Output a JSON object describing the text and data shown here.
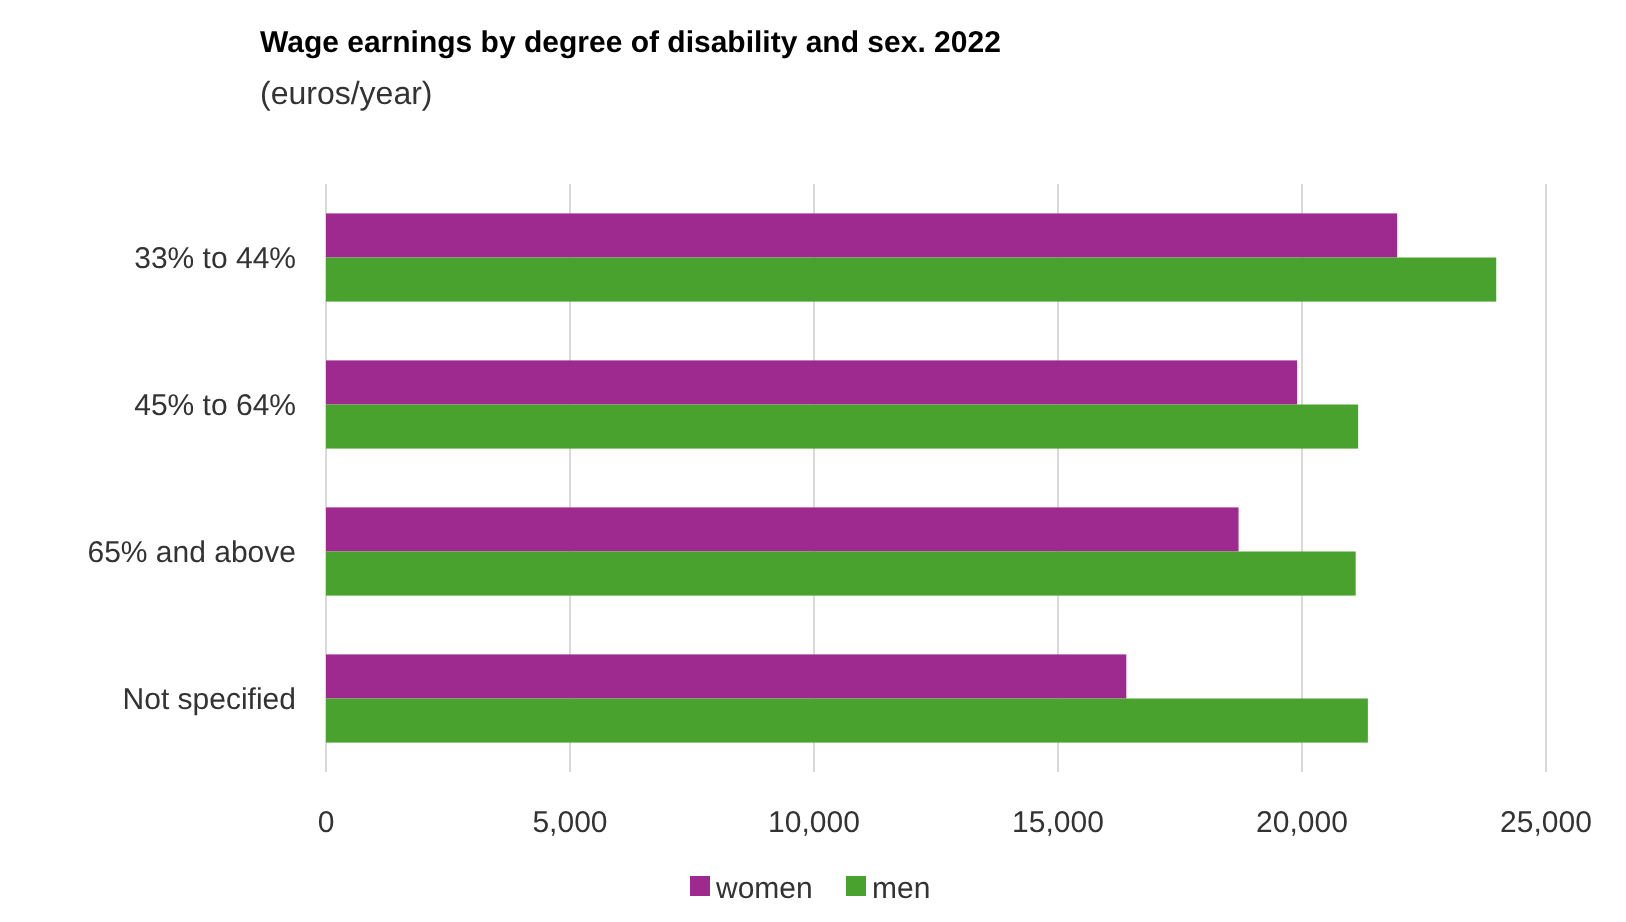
{
  "chart_data": {
    "type": "bar",
    "orientation": "horizontal",
    "title": "Wage earnings by degree of disability and sex. 2022",
    "subtitle": "(euros/year)",
    "categories": [
      "33% to 44%",
      "45% to 64%",
      "65% and above",
      "Not specified"
    ],
    "series": [
      {
        "name": "women",
        "color": "#9e2a8f",
        "values": [
          21950,
          19900,
          18700,
          16400
        ]
      },
      {
        "name": "men",
        "color": "#4aa22e",
        "values": [
          23980,
          21150,
          21100,
          21350
        ]
      }
    ],
    "xlim": [
      0,
      25000
    ],
    "xticks": [
      {
        "value": 0,
        "label": "0"
      },
      {
        "value": 5000,
        "label": "5,000"
      },
      {
        "value": 10000,
        "label": "10,000"
      },
      {
        "value": 15000,
        "label": "15,000"
      },
      {
        "value": 20000,
        "label": "20,000"
      },
      {
        "value": 25000,
        "label": "25,000"
      }
    ],
    "grid": "x",
    "legend": "bottom"
  }
}
